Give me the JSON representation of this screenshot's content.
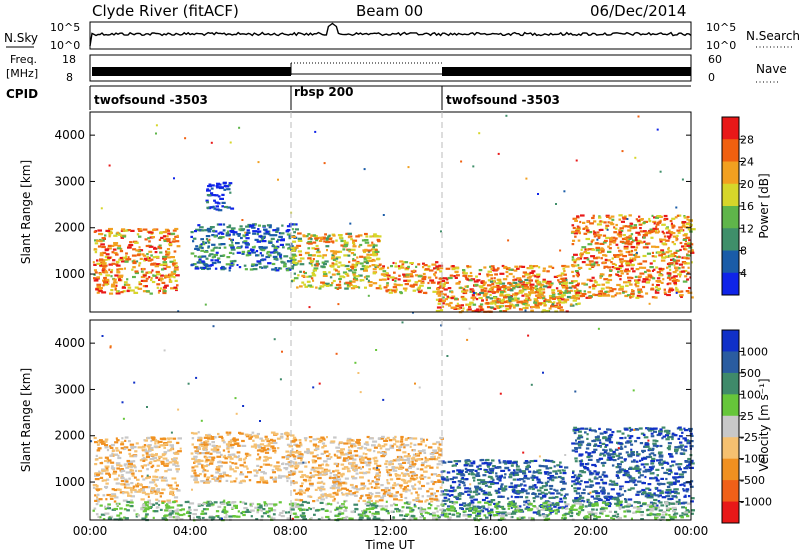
{
  "header": {
    "station": "Clyde River (fitACF)",
    "beam": "Beam 00",
    "date": "06/Dec/2014"
  },
  "top_panels": {
    "nsky": {
      "label": "N.Sky",
      "tick_top": "10^5",
      "tick_bottom": "10^0",
      "right_label": "N.Search",
      "right_tick_top": "10^5",
      "right_tick_bottom": "10^0"
    },
    "freq": {
      "label_line1": "Freq.",
      "label_line2": "[MHz]",
      "tick_top": "18",
      "tick_bottom": "8",
      "right_label": "Nave",
      "right_tick_top": "60",
      "right_tick_bottom": "0"
    },
    "cpid": {
      "label": "CPID",
      "segments": [
        {
          "name": "twofsound -3503",
          "start": "00:00",
          "end": "08:00"
        },
        {
          "name": "rbsp 200",
          "start": "08:00",
          "end": "14:00"
        },
        {
          "name": "twofsound -3503",
          "start": "14:00",
          "end": "24:00"
        }
      ]
    }
  },
  "chart_data": [
    {
      "type": "heatmap",
      "panel": "power",
      "ylabel": "Slant Range [km]",
      "ylim": [
        180,
        4500
      ],
      "yticks": [
        "1000",
        "2000",
        "3000",
        "4000"
      ],
      "xlim": [
        "00:00",
        "24:00"
      ],
      "colorbar": {
        "label": "Power [dB]",
        "ticks": [
          "4",
          "8",
          "12",
          "16",
          "20",
          "24",
          "28"
        ],
        "colors": [
          "#1024e8",
          "#1a5ca8",
          "#3f8f6a",
          "#5fb54a",
          "#d6d62a",
          "#f2a020",
          "#f06010",
          "#e81818"
        ]
      },
      "regions": [
        {
          "t0": 0.1,
          "t1": 3.5,
          "r0": 600,
          "r1": 2000,
          "level": 28
        },
        {
          "t0": 4.0,
          "t1": 8.2,
          "r0": 1100,
          "r1": 2100,
          "level": 12
        },
        {
          "t0": 4.6,
          "t1": 5.6,
          "r0": 2400,
          "r1": 3000,
          "level": 8
        },
        {
          "t0": 8.0,
          "t1": 11.5,
          "r0": 700,
          "r1": 1900,
          "level": 24
        },
        {
          "t0": 11.5,
          "t1": 14.0,
          "r0": 600,
          "r1": 1300,
          "level": 28
        },
        {
          "t0": 13.8,
          "t1": 19.0,
          "r0": 200,
          "r1": 1200,
          "level": 28
        },
        {
          "t0": 15.5,
          "t1": 19.5,
          "r0": 300,
          "r1": 900,
          "level": 24
        },
        {
          "t0": 19.2,
          "t1": 24.0,
          "r0": 500,
          "r1": 2300,
          "level": 28
        }
      ]
    },
    {
      "type": "heatmap",
      "panel": "velocity",
      "ylabel": "Slant Range [km]",
      "ylim": [
        180,
        4500
      ],
      "yticks": [
        "1000",
        "2000",
        "3000",
        "4000"
      ],
      "xlabel": "Time UT",
      "xlim": [
        "00:00",
        "24:00"
      ],
      "xticks": [
        "00:00",
        "04:00",
        "08:00",
        "12:00",
        "16:00",
        "20:00",
        "00:00"
      ],
      "colorbar": {
        "label": "Velocity [m s⁻¹]",
        "ticks": [
          "1000",
          "500",
          "100",
          "25",
          "-25",
          "-100",
          "-500",
          "-1000"
        ],
        "colors": [
          "#1030c8",
          "#2a5ca0",
          "#3f8a6a",
          "#66c63a",
          "#c8c8c8",
          "#f5c070",
          "#f09020",
          "#f06018",
          "#e81818"
        ]
      },
      "regions": [
        {
          "t0": 0.1,
          "t1": 3.5,
          "r0": 600,
          "r1": 2000,
          "level": -100
        },
        {
          "t0": 4.0,
          "t1": 8.2,
          "r0": 1000,
          "r1": 2100,
          "level": -100
        },
        {
          "t0": 8.0,
          "t1": 14.0,
          "r0": 600,
          "r1": 2000,
          "level": -100
        },
        {
          "t0": 14.0,
          "t1": 19.0,
          "r0": 300,
          "r1": 1500,
          "level": 500
        },
        {
          "t0": 19.2,
          "t1": 24.0,
          "r0": 500,
          "r1": 2200,
          "level": 500
        },
        {
          "t0": 0.1,
          "t1": 24.0,
          "r0": 200,
          "r1": 600,
          "level": 25
        }
      ]
    }
  ]
}
